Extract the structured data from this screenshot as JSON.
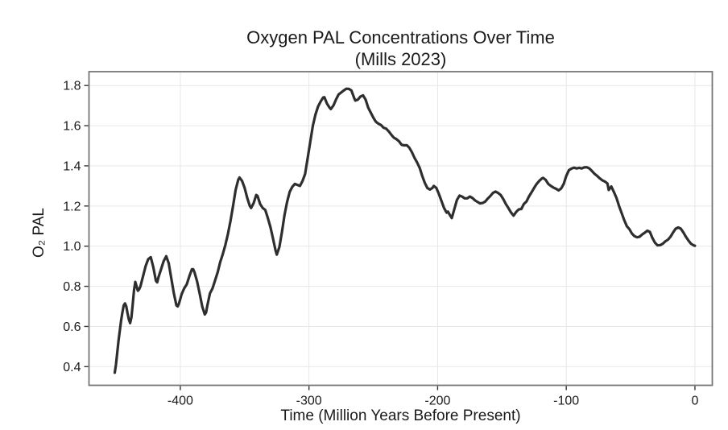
{
  "style": {
    "background": "#ffffff",
    "line_color": "#2e2e2e",
    "grid_color": "#e7e7e7",
    "frame_color": "#767676",
    "tick_color": "#333333",
    "text_color": "#1a1a1a",
    "line_width": 3.2
  },
  "axes": {
    "x": {
      "ticks": [
        -400,
        -300,
        -200,
        -100,
        0
      ],
      "tick_labels": [
        "-400",
        "-300",
        "-200",
        "-100",
        "0"
      ]
    },
    "y": {
      "ticks": [
        0.4,
        0.6,
        0.8,
        1.0,
        1.2,
        1.4,
        1.6,
        1.8
      ],
      "tick_labels": [
        "0.4",
        "0.6",
        "0.8",
        "1.0",
        "1.2",
        "1.4",
        "1.6",
        "1.8"
      ]
    }
  },
  "chart_data": {
    "type": "line",
    "title": "Oxygen PAL Concentrations Over Time",
    "subtitle": "(Mills 2023)",
    "xlabel": "Time (Million Years Before Present)",
    "ylabel": "O₂ PAL",
    "xlim": [
      -471,
      13.5
    ],
    "ylim": [
      0.307,
      1.869
    ],
    "grid": true,
    "legend": false,
    "series": [
      {
        "name": "O2 PAL (Mills 2023)",
        "points": [
          [
            -451,
            0.37
          ],
          [
            -450,
            0.41
          ],
          [
            -449,
            0.47
          ],
          [
            -448,
            0.53
          ],
          [
            -447,
            0.58
          ],
          [
            -446,
            0.63
          ],
          [
            -445,
            0.67
          ],
          [
            -444,
            0.705
          ],
          [
            -443,
            0.715
          ],
          [
            -442,
            0.7
          ],
          [
            -441,
            0.665
          ],
          [
            -440,
            0.635
          ],
          [
            -439,
            0.617
          ],
          [
            -438,
            0.645
          ],
          [
            -437,
            0.71
          ],
          [
            -436,
            0.78
          ],
          [
            -435,
            0.822
          ],
          [
            -434,
            0.8
          ],
          [
            -433,
            0.778
          ],
          [
            -432,
            0.785
          ],
          [
            -431,
            0.8
          ],
          [
            -429,
            0.85
          ],
          [
            -427,
            0.9
          ],
          [
            -425,
            0.935
          ],
          [
            -423,
            0.945
          ],
          [
            -421,
            0.895
          ],
          [
            -419,
            0.828
          ],
          [
            -418,
            0.82
          ],
          [
            -417,
            0.845
          ],
          [
            -415,
            0.885
          ],
          [
            -413,
            0.925
          ],
          [
            -411,
            0.95
          ],
          [
            -409,
            0.915
          ],
          [
            -407,
            0.84
          ],
          [
            -405,
            0.765
          ],
          [
            -403,
            0.705
          ],
          [
            -402,
            0.7
          ],
          [
            -401,
            0.715
          ],
          [
            -399,
            0.76
          ],
          [
            -397,
            0.79
          ],
          [
            -395,
            0.81
          ],
          [
            -393,
            0.85
          ],
          [
            -391,
            0.885
          ],
          [
            -390,
            0.885
          ],
          [
            -389,
            0.87
          ],
          [
            -387,
            0.825
          ],
          [
            -385,
            0.765
          ],
          [
            -383,
            0.7
          ],
          [
            -381,
            0.66
          ],
          [
            -380,
            0.67
          ],
          [
            -379,
            0.705
          ],
          [
            -377,
            0.765
          ],
          [
            -375,
            0.79
          ],
          [
            -373,
            0.83
          ],
          [
            -371,
            0.87
          ],
          [
            -369,
            0.92
          ],
          [
            -367,
            0.96
          ],
          [
            -365,
            1.005
          ],
          [
            -363,
            1.06
          ],
          [
            -361,
            1.125
          ],
          [
            -359,
            1.2
          ],
          [
            -357,
            1.28
          ],
          [
            -355,
            1.33
          ],
          [
            -354,
            1.342
          ],
          [
            -352,
            1.325
          ],
          [
            -350,
            1.29
          ],
          [
            -348,
            1.24
          ],
          [
            -346,
            1.2
          ],
          [
            -345,
            1.19
          ],
          [
            -343,
            1.215
          ],
          [
            -341,
            1.255
          ],
          [
            -340,
            1.25
          ],
          [
            -338,
            1.21
          ],
          [
            -336,
            1.19
          ],
          [
            -334,
            1.18
          ],
          [
            -332,
            1.14
          ],
          [
            -330,
            1.095
          ],
          [
            -328,
            1.04
          ],
          [
            -326,
            0.98
          ],
          [
            -325,
            0.958
          ],
          [
            -323,
            0.995
          ],
          [
            -321,
            1.07
          ],
          [
            -319,
            1.155
          ],
          [
            -317,
            1.22
          ],
          [
            -315,
            1.27
          ],
          [
            -313,
            1.295
          ],
          [
            -311,
            1.31
          ],
          [
            -309,
            1.305
          ],
          [
            -307,
            1.3
          ],
          [
            -305,
            1.325
          ],
          [
            -303,
            1.36
          ],
          [
            -301,
            1.44
          ],
          [
            -299,
            1.52
          ],
          [
            -297,
            1.6
          ],
          [
            -295,
            1.655
          ],
          [
            -293,
            1.695
          ],
          [
            -291,
            1.72
          ],
          [
            -289,
            1.74
          ],
          [
            -288,
            1.742
          ],
          [
            -286,
            1.71
          ],
          [
            -284,
            1.69
          ],
          [
            -283,
            1.683
          ],
          [
            -281,
            1.7
          ],
          [
            -279,
            1.73
          ],
          [
            -277,
            1.755
          ],
          [
            -275,
            1.765
          ],
          [
            -273,
            1.775
          ],
          [
            -271,
            1.784
          ],
          [
            -269,
            1.783
          ],
          [
            -267,
            1.775
          ],
          [
            -265,
            1.74
          ],
          [
            -264,
            1.725
          ],
          [
            -262,
            1.73
          ],
          [
            -260,
            1.745
          ],
          [
            -258,
            1.751
          ],
          [
            -256,
            1.73
          ],
          [
            -254,
            1.69
          ],
          [
            -252,
            1.665
          ],
          [
            -250,
            1.64
          ],
          [
            -248,
            1.62
          ],
          [
            -246,
            1.61
          ],
          [
            -244,
            1.603
          ],
          [
            -242,
            1.59
          ],
          [
            -240,
            1.585
          ],
          [
            -238,
            1.572
          ],
          [
            -236,
            1.555
          ],
          [
            -234,
            1.54
          ],
          [
            -232,
            1.533
          ],
          [
            -230,
            1.522
          ],
          [
            -228,
            1.505
          ],
          [
            -226,
            1.502
          ],
          [
            -224,
            1.503
          ],
          [
            -222,
            1.49
          ],
          [
            -220,
            1.468
          ],
          [
            -218,
            1.44
          ],
          [
            -216,
            1.417
          ],
          [
            -214,
            1.39
          ],
          [
            -212,
            1.35
          ],
          [
            -210,
            1.315
          ],
          [
            -208,
            1.29
          ],
          [
            -206,
            1.282
          ],
          [
            -204,
            1.29
          ],
          [
            -203,
            1.3
          ],
          [
            -201,
            1.29
          ],
          [
            -199,
            1.26
          ],
          [
            -197,
            1.225
          ],
          [
            -195,
            1.19
          ],
          [
            -193,
            1.167
          ],
          [
            -192,
            1.172
          ],
          [
            -190,
            1.15
          ],
          [
            -189,
            1.14
          ],
          [
            -187,
            1.185
          ],
          [
            -185,
            1.23
          ],
          [
            -183,
            1.252
          ],
          [
            -181,
            1.247
          ],
          [
            -179,
            1.238
          ],
          [
            -177,
            1.238
          ],
          [
            -175,
            1.247
          ],
          [
            -173,
            1.24
          ],
          [
            -171,
            1.228
          ],
          [
            -169,
            1.22
          ],
          [
            -167,
            1.213
          ],
          [
            -165,
            1.215
          ],
          [
            -163,
            1.222
          ],
          [
            -161,
            1.237
          ],
          [
            -159,
            1.25
          ],
          [
            -157,
            1.265
          ],
          [
            -155,
            1.272
          ],
          [
            -153,
            1.265
          ],
          [
            -151,
            1.255
          ],
          [
            -149,
            1.235
          ],
          [
            -147,
            1.21
          ],
          [
            -145,
            1.19
          ],
          [
            -143,
            1.168
          ],
          [
            -141,
            1.152
          ],
          [
            -139,
            1.17
          ],
          [
            -137,
            1.183
          ],
          [
            -135,
            1.185
          ],
          [
            -133,
            1.21
          ],
          [
            -131,
            1.222
          ],
          [
            -129,
            1.248
          ],
          [
            -127,
            1.268
          ],
          [
            -125,
            1.29
          ],
          [
            -123,
            1.31
          ],
          [
            -121,
            1.325
          ],
          [
            -119,
            1.337
          ],
          [
            -118,
            1.34
          ],
          [
            -116,
            1.33
          ],
          [
            -114,
            1.31
          ],
          [
            -112,
            1.3
          ],
          [
            -110,
            1.292
          ],
          [
            -108,
            1.286
          ],
          [
            -106,
            1.278
          ],
          [
            -104,
            1.287
          ],
          [
            -102,
            1.31
          ],
          [
            -100,
            1.35
          ],
          [
            -98,
            1.378
          ],
          [
            -96,
            1.386
          ],
          [
            -94,
            1.391
          ],
          [
            -92,
            1.387
          ],
          [
            -90,
            1.39
          ],
          [
            -88,
            1.387
          ],
          [
            -86,
            1.392
          ],
          [
            -84,
            1.393
          ],
          [
            -82,
            1.387
          ],
          [
            -80,
            1.374
          ],
          [
            -78,
            1.36
          ],
          [
            -76,
            1.35
          ],
          [
            -74,
            1.338
          ],
          [
            -72,
            1.328
          ],
          [
            -70,
            1.322
          ],
          [
            -68,
            1.312
          ],
          [
            -67,
            1.28
          ],
          [
            -65,
            1.297
          ],
          [
            -63,
            1.27
          ],
          [
            -61,
            1.24
          ],
          [
            -59,
            1.2
          ],
          [
            -57,
            1.165
          ],
          [
            -55,
            1.13
          ],
          [
            -53,
            1.1
          ],
          [
            -51,
            1.085
          ],
          [
            -49,
            1.063
          ],
          [
            -47,
            1.05
          ],
          [
            -45,
            1.044
          ],
          [
            -43,
            1.047
          ],
          [
            -41,
            1.058
          ],
          [
            -39,
            1.067
          ],
          [
            -37,
            1.077
          ],
          [
            -35,
            1.071
          ],
          [
            -33,
            1.04
          ],
          [
            -31,
            1.017
          ],
          [
            -29,
            1.004
          ],
          [
            -27,
            1.005
          ],
          [
            -25,
            1.012
          ],
          [
            -23,
            1.024
          ],
          [
            -21,
            1.032
          ],
          [
            -19,
            1.047
          ],
          [
            -17,
            1.068
          ],
          [
            -15,
            1.087
          ],
          [
            -13,
            1.093
          ],
          [
            -11,
            1.087
          ],
          [
            -9,
            1.068
          ],
          [
            -7,
            1.046
          ],
          [
            -5,
            1.028
          ],
          [
            -3,
            1.012
          ],
          [
            -1,
            1.004
          ],
          [
            0,
            1.002
          ]
        ]
      }
    ]
  }
}
